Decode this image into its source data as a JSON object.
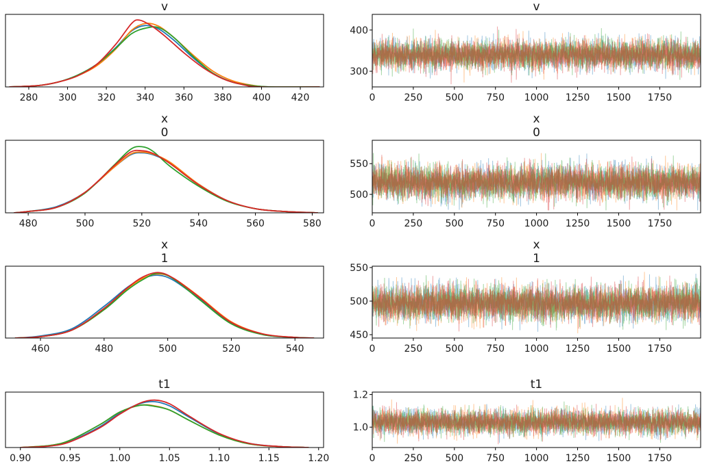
{
  "chart_data": [
    {
      "type": "line",
      "kind": "kde",
      "title": [
        "v"
      ],
      "xlim": [
        268,
        432
      ],
      "xticks": [
        280,
        300,
        320,
        340,
        360,
        380,
        400,
        420
      ],
      "series": [
        {
          "color": "#1f77b4",
          "x": [
            270,
            285,
            295,
            305,
            315,
            325,
            333,
            340,
            347,
            355,
            365,
            375,
            385,
            395,
            405,
            430
          ],
          "y": [
            0,
            0.02,
            0.07,
            0.17,
            0.33,
            0.58,
            0.82,
            0.9,
            0.85,
            0.68,
            0.42,
            0.2,
            0.07,
            0.02,
            0,
            0
          ]
        },
        {
          "color": "#ff7f0e",
          "x": [
            270,
            285,
            295,
            305,
            315,
            325,
            333,
            340,
            347,
            355,
            365,
            375,
            385,
            395,
            405,
            430
          ],
          "y": [
            0,
            0.02,
            0.07,
            0.16,
            0.31,
            0.56,
            0.83,
            0.93,
            0.89,
            0.72,
            0.46,
            0.23,
            0.09,
            0.025,
            0,
            0
          ]
        },
        {
          "color": "#2ca02c",
          "x": [
            270,
            285,
            295,
            305,
            315,
            325,
            333,
            340,
            347,
            355,
            365,
            375,
            385,
            395,
            405,
            430
          ],
          "y": [
            0,
            0.02,
            0.07,
            0.17,
            0.33,
            0.57,
            0.78,
            0.86,
            0.87,
            0.72,
            0.44,
            0.2,
            0.07,
            0.02,
            0,
            0
          ]
        },
        {
          "color": "#d62728",
          "x": [
            270,
            285,
            295,
            305,
            315,
            325,
            333,
            337,
            343,
            350,
            360,
            370,
            380,
            390,
            400,
            430
          ],
          "y": [
            0,
            0.02,
            0.07,
            0.16,
            0.33,
            0.63,
            0.93,
            0.98,
            0.9,
            0.75,
            0.5,
            0.28,
            0.12,
            0.035,
            0,
            0
          ]
        }
      ]
    },
    {
      "type": "line",
      "kind": "trace",
      "title": [
        "v"
      ],
      "xlim": [
        0,
        1999
      ],
      "ylim": [
        262,
        438
      ],
      "xticks": [
        0,
        250,
        500,
        750,
        1000,
        1250,
        1500,
        1750
      ],
      "yticks": [
        300,
        400
      ],
      "n_draws": 2000,
      "series": [
        {
          "color": "#1f77b4",
          "center": 340,
          "spread": 18,
          "min": 268,
          "max": 432
        },
        {
          "color": "#ff7f0e",
          "center": 341,
          "spread": 18,
          "min": 268,
          "max": 432
        },
        {
          "color": "#2ca02c",
          "center": 340,
          "spread": 18,
          "min": 268,
          "max": 432
        },
        {
          "color": "#d62728",
          "center": 339,
          "spread": 18,
          "min": 268,
          "max": 432
        }
      ]
    },
    {
      "type": "line",
      "kind": "kde",
      "title": [
        "x",
        "0"
      ],
      "xlim": [
        472,
        584
      ],
      "xticks": [
        480,
        500,
        520,
        540,
        560,
        580
      ],
      "series": [
        {
          "color": "#1f77b4",
          "x": [
            475,
            480,
            490,
            500,
            510,
            516,
            520,
            524,
            530,
            540,
            550,
            560,
            570,
            582
          ],
          "y": [
            0,
            0.02,
            0.09,
            0.3,
            0.66,
            0.85,
            0.88,
            0.85,
            0.73,
            0.42,
            0.18,
            0.06,
            0.02,
            0
          ]
        },
        {
          "color": "#ff7f0e",
          "x": [
            475,
            480,
            490,
            500,
            510,
            516,
            520,
            524,
            530,
            540,
            550,
            560,
            570,
            582
          ],
          "y": [
            0,
            0.02,
            0.08,
            0.3,
            0.66,
            0.86,
            0.89,
            0.86,
            0.74,
            0.42,
            0.18,
            0.06,
            0.02,
            0
          ]
        },
        {
          "color": "#2ca02c",
          "x": [
            475,
            480,
            490,
            500,
            510,
            516,
            520,
            524,
            530,
            540,
            550,
            560,
            570,
            582
          ],
          "y": [
            0,
            0.02,
            0.08,
            0.29,
            0.69,
            0.93,
            0.97,
            0.9,
            0.68,
            0.39,
            0.17,
            0.06,
            0.02,
            0
          ]
        },
        {
          "color": "#d62728",
          "x": [
            475,
            480,
            490,
            500,
            510,
            516,
            520,
            524,
            530,
            540,
            550,
            560,
            570,
            582
          ],
          "y": [
            0,
            0.02,
            0.08,
            0.3,
            0.68,
            0.89,
            0.91,
            0.87,
            0.72,
            0.41,
            0.18,
            0.06,
            0.02,
            0
          ]
        }
      ]
    },
    {
      "type": "line",
      "kind": "trace",
      "title": [
        "x",
        "0"
      ],
      "xlim": [
        0,
        1999
      ],
      "ylim": [
        470,
        588
      ],
      "xticks": [
        0,
        250,
        500,
        750,
        1000,
        1250,
        1500,
        1750
      ],
      "yticks": [
        500,
        550
      ],
      "n_draws": 2000,
      "series": [
        {
          "color": "#1f77b4",
          "center": 520,
          "spread": 14,
          "min": 474,
          "max": 582
        },
        {
          "color": "#ff7f0e",
          "center": 520,
          "spread": 14,
          "min": 474,
          "max": 582
        },
        {
          "color": "#2ca02c",
          "center": 520,
          "spread": 14,
          "min": 474,
          "max": 582
        },
        {
          "color": "#d62728",
          "center": 520,
          "spread": 14,
          "min": 474,
          "max": 582
        }
      ]
    },
    {
      "type": "line",
      "kind": "kde",
      "title": [
        "x",
        "1"
      ],
      "xlim": [
        449,
        549
      ],
      "xticks": [
        460,
        480,
        500,
        520,
        540
      ],
      "series": [
        {
          "color": "#1f77b4",
          "x": [
            452,
            460,
            470,
            480,
            487,
            492,
            497,
            502,
            510,
            520,
            530,
            540,
            546
          ],
          "y": [
            0,
            0.03,
            0.14,
            0.47,
            0.74,
            0.88,
            0.93,
            0.85,
            0.58,
            0.22,
            0.05,
            0.01,
            0
          ]
        },
        {
          "color": "#ff7f0e",
          "x": [
            452,
            460,
            470,
            480,
            487,
            492,
            497,
            502,
            510,
            520,
            530,
            540,
            546
          ],
          "y": [
            0,
            0.02,
            0.12,
            0.42,
            0.72,
            0.88,
            0.95,
            0.88,
            0.61,
            0.24,
            0.06,
            0.01,
            0
          ]
        },
        {
          "color": "#2ca02c",
          "x": [
            452,
            460,
            470,
            480,
            487,
            492,
            497,
            502,
            510,
            520,
            530,
            540,
            546
          ],
          "y": [
            0,
            0.02,
            0.12,
            0.42,
            0.7,
            0.86,
            0.96,
            0.87,
            0.57,
            0.21,
            0.05,
            0.01,
            0
          ]
        },
        {
          "color": "#d62728",
          "x": [
            452,
            460,
            470,
            480,
            487,
            492,
            497,
            502,
            510,
            520,
            530,
            540,
            546
          ],
          "y": [
            0,
            0.02,
            0.12,
            0.44,
            0.73,
            0.9,
            0.97,
            0.88,
            0.6,
            0.23,
            0.06,
            0.01,
            0
          ]
        }
      ]
    },
    {
      "type": "line",
      "kind": "trace",
      "title": [
        "x",
        "1"
      ],
      "xlim": [
        0,
        1999
      ],
      "ylim": [
        445,
        552
      ],
      "xticks": [
        0,
        250,
        500,
        750,
        1000,
        1250,
        1500,
        1750
      ],
      "yticks": [
        450,
        500,
        550
      ],
      "n_draws": 2000,
      "series": [
        {
          "color": "#1f77b4",
          "center": 497,
          "spread": 13,
          "min": 452,
          "max": 548
        },
        {
          "color": "#ff7f0e",
          "center": 497,
          "spread": 13,
          "min": 452,
          "max": 548
        },
        {
          "color": "#2ca02c",
          "center": 497,
          "spread": 13,
          "min": 452,
          "max": 548
        },
        {
          "color": "#d62728",
          "center": 497,
          "spread": 13,
          "min": 452,
          "max": 548
        }
      ]
    },
    {
      "type": "line",
      "kind": "kde",
      "title": [
        "t1"
      ],
      "xlim": [
        0.885,
        1.205
      ],
      "xticks": [
        0.9,
        0.95,
        1.0,
        1.05,
        1.1,
        1.15,
        1.2
      ],
      "xticklabels": [
        "0.90",
        "0.95",
        "1.00",
        "1.05",
        "1.10",
        "1.15",
        "1.20"
      ],
      "series": [
        {
          "color": "#1f77b4",
          "x": [
            0.9,
            0.93,
            0.95,
            0.98,
            1.0,
            1.02,
            1.035,
            1.05,
            1.07,
            1.1,
            1.13,
            1.16,
            1.19
          ],
          "y": [
            0,
            0.03,
            0.12,
            0.4,
            0.66,
            0.84,
            0.88,
            0.8,
            0.58,
            0.26,
            0.08,
            0.02,
            0
          ]
        },
        {
          "color": "#ff7f0e",
          "x": [
            0.9,
            0.93,
            0.95,
            0.98,
            1.0,
            1.02,
            1.035,
            1.05,
            1.07,
            1.1,
            1.13,
            1.16,
            1.19
          ],
          "y": [
            0,
            0.04,
            0.14,
            0.44,
            0.68,
            0.81,
            0.8,
            0.72,
            0.52,
            0.24,
            0.07,
            0.02,
            0
          ]
        },
        {
          "color": "#2ca02c",
          "x": [
            0.9,
            0.93,
            0.95,
            0.98,
            1.0,
            1.02,
            1.035,
            1.05,
            1.07,
            1.1,
            1.13,
            1.16,
            1.19
          ],
          "y": [
            0,
            0.04,
            0.14,
            0.44,
            0.68,
            0.81,
            0.79,
            0.72,
            0.52,
            0.24,
            0.07,
            0.02,
            0
          ]
        },
        {
          "color": "#d62728",
          "x": [
            0.9,
            0.93,
            0.95,
            0.98,
            1.0,
            1.02,
            1.035,
            1.05,
            1.07,
            1.1,
            1.13,
            1.16,
            1.19
          ],
          "y": [
            0,
            0.03,
            0.11,
            0.38,
            0.64,
            0.85,
            0.91,
            0.84,
            0.6,
            0.27,
            0.08,
            0.02,
            0
          ]
        }
      ]
    },
    {
      "type": "line",
      "kind": "trace",
      "title": [
        "t1"
      ],
      "xlim": [
        0,
        1999
      ],
      "ylim": [
        0.875,
        1.215
      ],
      "xticks": [
        0,
        250,
        500,
        750,
        1000,
        1250,
        1500,
        1750
      ],
      "yticks": [
        1.0,
        1.2
      ],
      "yticklabels": [
        "1.0",
        "1.2"
      ],
      "n_draws": 2000,
      "series": [
        {
          "color": "#1f77b4",
          "center": 1.03,
          "spread": 0.038,
          "min": 0.89,
          "max": 1.2
        },
        {
          "color": "#ff7f0e",
          "center": 1.03,
          "spread": 0.038,
          "min": 0.89,
          "max": 1.2
        },
        {
          "color": "#2ca02c",
          "center": 1.03,
          "spread": 0.038,
          "min": 0.89,
          "max": 1.2
        },
        {
          "color": "#d62728",
          "center": 1.03,
          "spread": 0.038,
          "min": 0.89,
          "max": 1.2
        }
      ]
    }
  ]
}
